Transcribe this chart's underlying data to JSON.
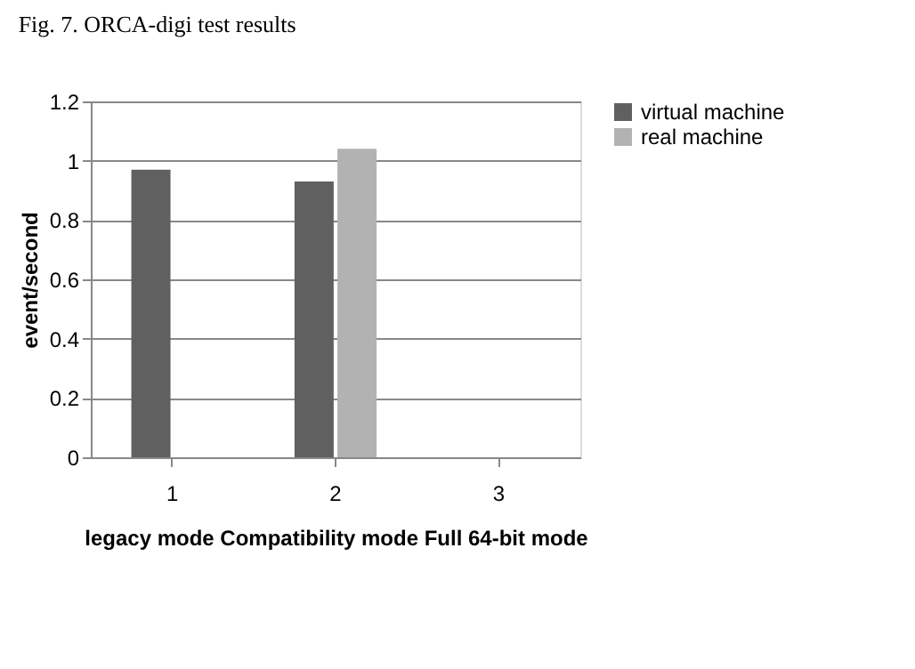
{
  "chart_data": {
    "type": "bar",
    "title": "Fig. 7.   ORCA-digi test results",
    "xlabel": "legacy mode  Compatibility mode Full 64-bit mode",
    "ylabel": "event/second",
    "categories": [
      "1",
      "2",
      "3"
    ],
    "series": [
      {
        "name": "virtual machine",
        "color": "#606060",
        "values": [
          0.97,
          0.93,
          null
        ]
      },
      {
        "name": "real machine",
        "color": "#b2b2b2",
        "values": [
          null,
          1.04,
          null
        ]
      }
    ],
    "ylim": [
      0,
      1.2
    ],
    "yticks": [
      0,
      0.2,
      0.4,
      0.6,
      0.8,
      1,
      1.2
    ],
    "grid": "y",
    "legend": "right"
  }
}
